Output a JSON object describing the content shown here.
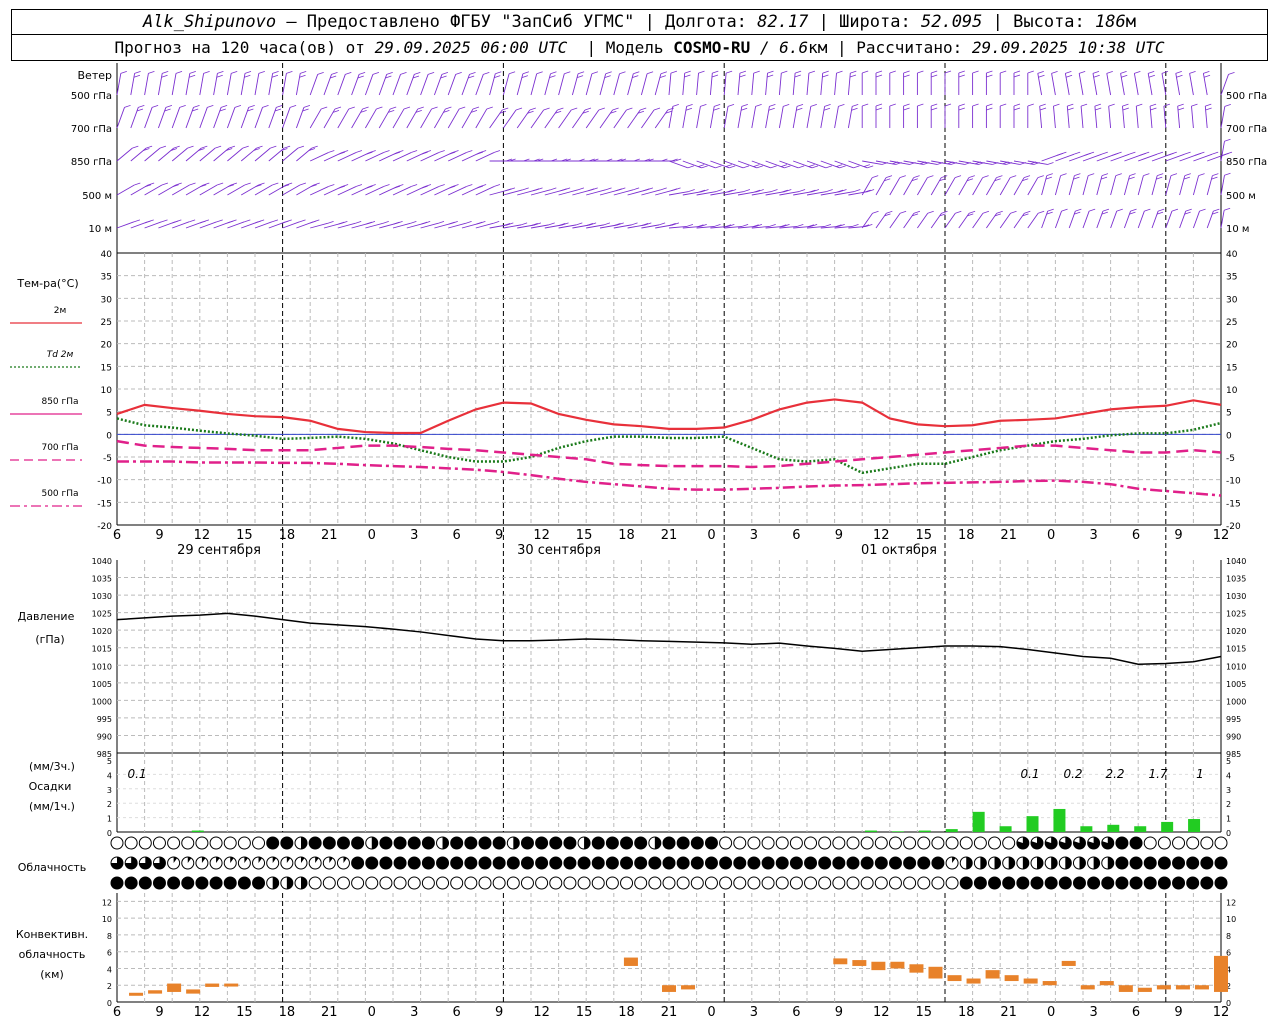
{
  "header": {
    "station": "Alk_Shipunovo",
    "provider": "– Предоставлено ФГБУ \"ЗапСиб УГМС\"",
    "lon_label": "| Долгота:",
    "lon": "82.17",
    "lat_label": "| Широта:",
    "lat": "52.095",
    "alt_label": "| Высота:",
    "alt": "186",
    "alt_unit": "м",
    "forecast_label": "Прогноз на 120 часа(ов) от",
    "run_time": "29.09.2025 06:00 UTC",
    "model_label": "| Модель",
    "model": "COSMO-RU",
    "model_res": "/ 6.6",
    "model_res_unit": "км",
    "calc_label": "| Рассчитано:",
    "calc_time": "29.09.2025 10:38 UTC"
  },
  "wind_panel": {
    "title": "Ветер",
    "levels": [
      "500 гПа",
      "700 гПа",
      "850 гПа",
      "500 м",
      "10   м"
    ],
    "color": "#7b2fd0"
  },
  "temp_panel": {
    "title": "Тем-ра(°C)",
    "legend": [
      {
        "label": "2м",
        "color": "#e8303a",
        "style": "solid"
      },
      {
        "label": "Td 2м",
        "color": "#1a7a1a",
        "style": "dotted"
      },
      {
        "label": "850 гПа",
        "color": "#e0208a",
        "style": "solid"
      },
      {
        "label": "700 гПа",
        "color": "#e0208a",
        "style": "dashed"
      },
      {
        "label": "500 гПа",
        "color": "#e0208a",
        "style": "dashdot"
      }
    ]
  },
  "time_axis": {
    "hour_labels": [
      "6",
      "9",
      "12",
      "15",
      "18",
      "21",
      "0",
      "3",
      "6",
      "9",
      "12",
      "15",
      "18",
      "21",
      "0",
      "3",
      "6",
      "9",
      "12",
      "15",
      "18",
      "21",
      "0",
      "3",
      "6",
      "9",
      "12"
    ],
    "dates": [
      "29 сентября",
      "30 сентября",
      "01 октября"
    ]
  },
  "pressure_panel": {
    "title": "Давление",
    "unit": "(гПа)"
  },
  "precip_panel": {
    "unit_3h": "(мм/3ч.)",
    "title": "Осадки",
    "unit_1h": "(мм/1ч.)",
    "totals": [
      "0.1",
      "0.1",
      "0.2",
      "2.2",
      "1.7",
      "1"
    ]
  },
  "cloud_panel": {
    "title": "Облачность"
  },
  "conv_panel": {
    "title_1": "Конвективн.",
    "title_2": "облачность",
    "unit": "(км)",
    "color": "#e8822a"
  },
  "chart_data": [
    {
      "type": "line",
      "title": "Тем-ра(°C)",
      "x_hours": [
        0,
        3,
        6,
        9,
        12,
        15,
        18,
        21,
        24,
        27,
        30,
        33,
        36,
        39,
        42,
        45,
        48,
        51,
        54,
        57,
        60,
        63,
        66,
        69,
        72,
        75,
        78,
        81,
        84,
        87,
        90,
        93,
        96,
        99,
        102,
        105,
        108,
        111,
        114,
        117,
        120
      ],
      "ylim": [
        -20,
        40
      ],
      "series": [
        {
          "name": "2м",
          "values": [
            4.5,
            6.5,
            5.8,
            5.2,
            4.5,
            4,
            3.8,
            3,
            1.2,
            0.5,
            0.3,
            0.3,
            3,
            5.5,
            7,
            6.8,
            4.5,
            3.2,
            2.2,
            1.8,
            1.2,
            1.2,
            1.5,
            3.2,
            5.5,
            7,
            7.7,
            7,
            3.5,
            2.2,
            1.8,
            2,
            3,
            3.2,
            3.5,
            4.5,
            5.5,
            6,
            6.3,
            7.5,
            6.5
          ]
        },
        {
          "name": "Td 2м",
          "values": [
            3.5,
            2,
            1.5,
            0.8,
            0.2,
            -0.3,
            -1,
            -0.8,
            -0.5,
            -1,
            -2,
            -3.5,
            -5,
            -6,
            -6,
            -5,
            -3,
            -1.5,
            -0.5,
            -0.5,
            -0.8,
            -0.8,
            -0.5,
            -3,
            -5.5,
            -6,
            -5.5,
            -8.5,
            -7.5,
            -6.5,
            -6.5,
            -5,
            -3.5,
            -2.5,
            -1.5,
            -1,
            -0.2,
            0.2,
            0.2,
            1,
            2.5
          ]
        },
        {
          "name": "850 гПа",
          "values": [
            -1.5,
            -2.5,
            -2.8,
            -3,
            -3.2,
            -3.5,
            -3.5,
            -3.5,
            -3,
            -2.5,
            -2.5,
            -2.8,
            -3.2,
            -3.5,
            -4,
            -4.5,
            -5,
            -5.5,
            -6.5,
            -6.8,
            -7,
            -7,
            -7,
            -7.2,
            -7,
            -6.5,
            -6,
            -5.5,
            -5,
            -4.5,
            -4,
            -3.5,
            -3,
            -2.5,
            -2.5,
            -3,
            -3.5,
            -4,
            -4,
            -3.5,
            -3
          ]
        },
        {
          "name": "700 гПа",
          "values": [
            -1.5,
            -2.5,
            -2.8,
            -3,
            -3.2,
            -3.5,
            -3.5,
            -3.5,
            -3,
            -2.5,
            -2.5,
            -2.8,
            -3.2,
            -3.5,
            -4,
            -4.5,
            -5,
            -5.5,
            -6.5,
            -6.8,
            -7,
            -7,
            -7,
            -7.2,
            -7,
            -6.5,
            -6,
            -5.5,
            -5,
            -4.5,
            -4,
            -3.5,
            -3,
            -2.5,
            -2.5,
            -3,
            -3.5,
            -4,
            -4,
            -3.5,
            -4
          ]
        },
        {
          "name": "500 гПа",
          "values": [
            -6,
            -6,
            -6,
            -6.2,
            -6.2,
            -6.2,
            -6.3,
            -6.3,
            -6.5,
            -6.8,
            -7,
            -7.2,
            -7.5,
            -7.8,
            -8.3,
            -9,
            -9.8,
            -10.5,
            -11,
            -11.5,
            -12,
            -12.2,
            -12.2,
            -12,
            -11.8,
            -11.5,
            -11.3,
            -11.2,
            -11,
            -10.8,
            -10.7,
            -10.6,
            -10.5,
            -10.3,
            -10.2,
            -10.5,
            -11,
            -12,
            -12.5,
            -13,
            -13.5
          ]
        }
      ]
    },
    {
      "type": "line",
      "title": "Давление",
      "ylim": [
        985,
        1040
      ],
      "x_hours": [
        0,
        3,
        6,
        9,
        12,
        15,
        18,
        21,
        24,
        27,
        30,
        33,
        36,
        39,
        42,
        45,
        48,
        51,
        54,
        57,
        60,
        63,
        66,
        69,
        72,
        75,
        78,
        81,
        84,
        87,
        90,
        93,
        96,
        99,
        102,
        105,
        108,
        111,
        114,
        117,
        120
      ],
      "series": [
        {
          "name": "",
          "values": [
            1023,
            1023.5,
            1024,
            1024.3,
            1024.8,
            1024,
            1023,
            1022,
            1021.5,
            1021,
            1020.3,
            1019.5,
            1018.5,
            1017.5,
            1017,
            1017,
            1017.2,
            1017.5,
            1017.3,
            1017,
            1016.8,
            1016.6,
            1016.4,
            1016,
            1016.3,
            1015.5,
            1014.8,
            1014,
            1014.5,
            1015,
            1015.5,
            1015.5,
            1015.3,
            1014.5,
            1013.5,
            1012.5,
            1012,
            1010.3,
            1010.5,
            1011,
            1012.5
          ]
        }
      ]
    },
    {
      "type": "bar",
      "title": "Осадки",
      "ylim": [
        0,
        5
      ],
      "bars": [
        [
          9,
          0.1
        ],
        [
          84,
          0.1
        ],
        [
          87,
          0.05
        ],
        [
          90,
          0.1
        ],
        [
          93,
          0.2
        ],
        [
          96,
          1.4
        ],
        [
          99,
          0.4
        ],
        [
          102,
          1.1
        ],
        [
          105,
          1.6
        ],
        [
          108,
          0.4
        ],
        [
          111,
          0.5
        ],
        [
          114,
          0.4
        ],
        [
          117,
          0.7
        ],
        [
          120,
          0.9
        ]
      ]
    },
    {
      "type": "bar",
      "title": "Конвективн. облачность (км)",
      "ylim": [
        0,
        13
      ],
      "bars": [
        [
          3,
          0.8,
          1.1
        ],
        [
          6,
          1,
          1.4
        ],
        [
          9,
          1.2,
          2.2
        ],
        [
          12,
          1,
          1.5
        ],
        [
          15,
          1.8,
          2.2
        ],
        [
          18,
          1.9,
          2.2
        ],
        [
          81,
          4.3,
          5.3
        ],
        [
          87,
          1.2,
          2
        ],
        [
          90,
          1.5,
          2
        ],
        [
          114,
          4.5,
          5.2
        ],
        [
          117,
          4.3,
          5
        ],
        [
          120,
          3.8,
          4.8
        ],
        [
          123,
          4,
          4.8
        ],
        [
          126,
          3.5,
          4.5
        ],
        [
          129,
          2.8,
          4.2
        ],
        [
          132,
          2.5,
          3.2
        ],
        [
          135,
          2.2,
          2.8
        ],
        [
          138,
          2.8,
          3.8
        ],
        [
          141,
          2.5,
          3.2
        ],
        [
          144,
          2.2,
          2.8
        ],
        [
          147,
          2,
          2.5
        ],
        [
          150,
          4.3,
          4.9
        ],
        [
          153,
          1.5,
          2
        ],
        [
          156,
          2,
          2.5
        ],
        [
          159,
          1.2,
          2
        ],
        [
          162,
          1.2,
          1.7
        ],
        [
          165,
          1.5,
          2
        ],
        [
          168,
          1.5,
          2
        ],
        [
          171,
          1.5,
          2
        ],
        [
          174,
          1.2,
          5.5
        ]
      ]
    }
  ]
}
